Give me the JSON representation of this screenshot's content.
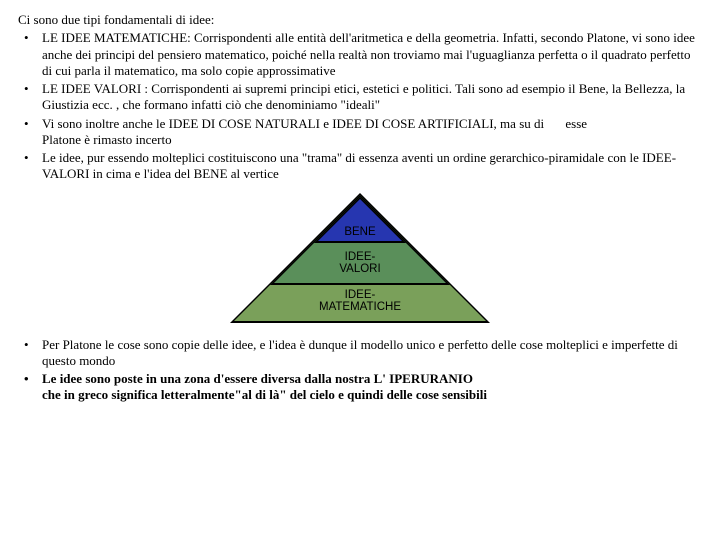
{
  "intro": "Ci sono due tipi fondamentali di idee:",
  "bullets_top": [
    "LE IDEE MATEMATICHE: Corrispondenti alle entità dell'aritmetica e della geometria. Infatti, secondo Platone, vi sono idee anche dei principi del pensiero matematico, poiché nella realtà non troviamo mai l'uguaglianza perfetta o il quadrato perfetto di cui parla il matematico, ma solo copie approssimative",
    "LE IDEE VALORI : Corrispondenti ai supremi principi etici, estetici e politici. Tali sono ad esempio il Bene, la Bellezza, la Giustizia ecc. , che formano infatti ciò che denominiamo \"ideali\"",
    " Le idee, pur essendo molteplici costituiscono una \"trama\" di essenza aventi un ordine gerarchico-piramidale con le IDEE-VALORI in cima e l'idea del BENE al vertice"
  ],
  "bullet_cose": {
    "main": " Vi sono inoltre anche le IDEE DI COSE NATURALI e IDEE DI COSE ARTIFICIALI, ma su di",
    "trail": "esse",
    "cont": "Platone è rimasto incerto"
  },
  "pyramid": {
    "colors": {
      "bene": "#2636b0",
      "valori": "#5a8f5a",
      "matematiche": "#7aa05a",
      "bg_tri": "#000000"
    },
    "labels": {
      "bene": "BENE",
      "valori": "IDEE-\nVALORI",
      "matematiche": "IDEE-\nMATEMATICHE"
    }
  },
  "bullets_bottom": [
    "Per Platone le cose sono copie delle idee, e l'idea è dunque il modello unico e perfetto delle cose molteplici e imperfette di questo mondo"
  ],
  "bullet_bold": {
    "line1": "Le idee sono poste in una zona d'essere diversa dalla nostra L' IPERURANIO",
    "line2": " che in greco significa letteralmente\"al di là\" del cielo e quindi delle cose sensibili"
  }
}
